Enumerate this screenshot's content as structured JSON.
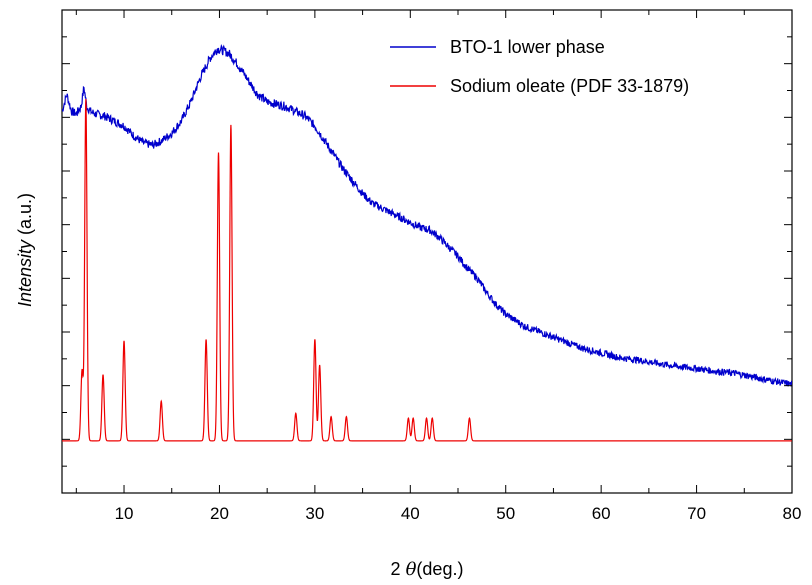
{
  "chart_data": {
    "type": "line",
    "xlabel_prefix": "2",
    "xlabel_symbol": "θ",
    "xlabel_suffix": "(deg.)",
    "ylabel_italic": "Intensity",
    "ylabel_suffix": "(a.u.)",
    "xlim": [
      3.5,
      80
    ],
    "ylim": [
      0,
      1
    ],
    "x_ticks": [
      10,
      20,
      30,
      40,
      50,
      60,
      70,
      80
    ],
    "x_tick_labels": [
      "10",
      "20",
      "30",
      "40",
      "50",
      "60",
      "70",
      "80"
    ],
    "y_tick_labels_shown": false,
    "grid": false,
    "legend_position": "top-right",
    "series": [
      {
        "name": "BTO-1 lower phase",
        "color": "#0000cc",
        "points": [
          [
            3.5,
            0.79
          ],
          [
            4.0,
            0.825
          ],
          [
            4.5,
            0.79
          ],
          [
            5.0,
            0.785
          ],
          [
            5.5,
            0.8
          ],
          [
            5.8,
            0.84
          ],
          [
            6.1,
            0.8
          ],
          [
            6.5,
            0.79
          ],
          [
            7,
            0.785
          ],
          [
            8,
            0.78
          ],
          [
            9,
            0.77
          ],
          [
            10,
            0.76
          ],
          [
            11,
            0.74
          ],
          [
            12,
            0.725
          ],
          [
            13,
            0.72
          ],
          [
            14,
            0.73
          ],
          [
            15,
            0.745
          ],
          [
            16,
            0.77
          ],
          [
            17,
            0.81
          ],
          [
            18,
            0.86
          ],
          [
            19,
            0.9
          ],
          [
            19.8,
            0.92
          ],
          [
            20.5,
            0.915
          ],
          [
            21,
            0.91
          ],
          [
            22,
            0.885
          ],
          [
            23,
            0.855
          ],
          [
            24,
            0.825
          ],
          [
            25,
            0.81
          ],
          [
            26,
            0.805
          ],
          [
            27,
            0.8
          ],
          [
            28,
            0.79
          ],
          [
            29,
            0.78
          ],
          [
            30,
            0.76
          ],
          [
            31,
            0.73
          ],
          [
            32,
            0.7
          ],
          [
            33,
            0.67
          ],
          [
            34,
            0.645
          ],
          [
            35,
            0.62
          ],
          [
            36,
            0.6
          ],
          [
            37,
            0.59
          ],
          [
            38,
            0.58
          ],
          [
            39,
            0.57
          ],
          [
            40,
            0.56
          ],
          [
            41,
            0.55
          ],
          [
            42,
            0.545
          ],
          [
            43,
            0.53
          ],
          [
            44,
            0.51
          ],
          [
            45,
            0.49
          ],
          [
            46,
            0.465
          ],
          [
            47,
            0.445
          ],
          [
            48,
            0.415
          ],
          [
            49,
            0.39
          ],
          [
            50,
            0.37
          ],
          [
            52,
            0.345
          ],
          [
            54,
            0.33
          ],
          [
            56,
            0.315
          ],
          [
            58,
            0.3
          ],
          [
            60,
            0.29
          ],
          [
            62,
            0.28
          ],
          [
            64,
            0.275
          ],
          [
            66,
            0.268
          ],
          [
            68,
            0.262
          ],
          [
            70,
            0.258
          ],
          [
            72,
            0.252
          ],
          [
            74,
            0.248
          ],
          [
            76,
            0.24
          ],
          [
            78,
            0.232
          ],
          [
            80,
            0.225
          ]
        ]
      },
      {
        "name": "Sodium oleate (PDF 33-1879)",
        "color": "#ee0000",
        "baseline": 0.108,
        "peaks": [
          [
            5.6,
            0.253
          ],
          [
            6.0,
            0.815
          ],
          [
            7.8,
            0.245
          ],
          [
            10.0,
            0.315
          ],
          [
            13.9,
            0.19
          ],
          [
            18.6,
            0.318
          ],
          [
            19.9,
            0.705
          ],
          [
            21.2,
            0.762
          ],
          [
            28.0,
            0.165
          ],
          [
            30.0,
            0.318
          ],
          [
            30.5,
            0.265
          ],
          [
            31.7,
            0.158
          ],
          [
            33.3,
            0.158
          ],
          [
            39.8,
            0.155
          ],
          [
            40.3,
            0.155
          ],
          [
            41.7,
            0.155
          ],
          [
            42.3,
            0.155
          ],
          [
            46.2,
            0.155
          ]
        ]
      }
    ]
  }
}
